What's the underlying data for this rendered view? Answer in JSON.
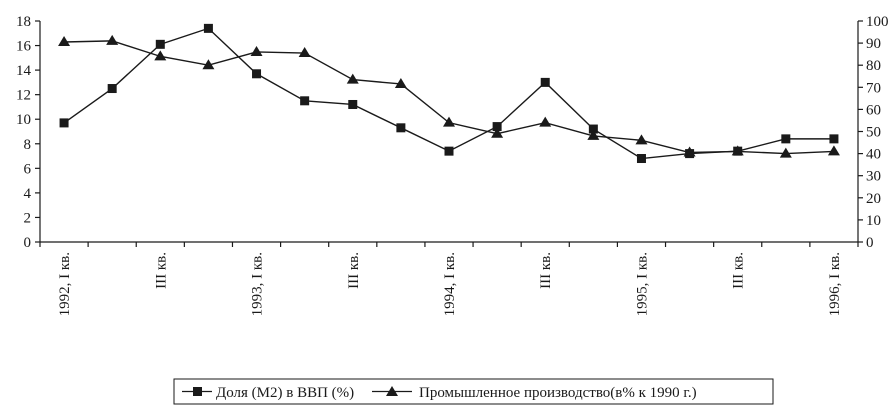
{
  "chart_data": {
    "type": "line",
    "x_tick_labels": [
      "1992, I кв.",
      "III кв.",
      "1993, I кв.",
      "III кв.",
      "1994, I кв.",
      "III кв.",
      "1995, I кв.",
      "III кв.",
      "1996, I кв."
    ],
    "x_label_quarter_index": [
      0,
      2,
      4,
      6,
      8,
      10,
      12,
      14,
      16
    ],
    "quarters": 17,
    "y_left": {
      "min": 0,
      "max": 18,
      "step": 2,
      "ticks": [
        "0",
        "2",
        "4",
        "6",
        "8",
        "10",
        "12",
        "14",
        "16",
        "18"
      ]
    },
    "y_right": {
      "min": 0,
      "max": 100,
      "step": 10,
      "ticks": [
        "0",
        "10",
        "20",
        "30",
        "40",
        "50",
        "60",
        "70",
        "80",
        "90",
        "100"
      ]
    },
    "grid": false,
    "legend_position": "bottom-center",
    "series": [
      {
        "name": "Доля (М2) в ВВП (%)",
        "marker": "square",
        "axis": "left",
        "color": "#1a1a1a",
        "values": [
          9.7,
          12.5,
          16.1,
          17.4,
          13.7,
          11.5,
          11.2,
          9.3,
          7.4,
          9.4,
          13.0,
          9.2,
          6.8,
          7.2,
          7.4,
          8.4,
          8.4
        ]
      },
      {
        "name": "Промышленное производство(в% к 1990 г.)",
        "marker": "triangle",
        "axis": "right",
        "color": "#1a1a1a",
        "values": [
          90.5,
          91.0,
          84.0,
          80.0,
          86.0,
          85.5,
          73.5,
          71.5,
          54.0,
          49.0,
          54.0,
          48.0,
          46.0,
          40.5,
          41.0,
          40.0,
          41.0
        ]
      }
    ]
  }
}
